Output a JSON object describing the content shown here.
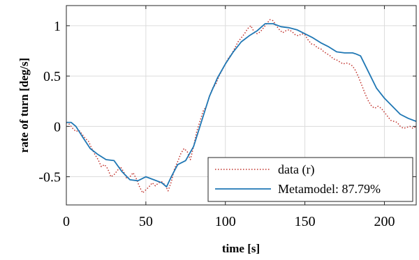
{
  "chart_data": {
    "type": "line",
    "xlabel": "time [s]",
    "ylabel": "rate of turn [deg/s]",
    "xlim": [
      0,
      220
    ],
    "ylim": [
      -0.78,
      1.2
    ],
    "xticks": [
      0,
      50,
      100,
      150,
      200
    ],
    "yticks": [
      -0.5,
      0,
      0.5,
      1
    ],
    "xtick_labels": [
      "0",
      "50",
      "100",
      "150",
      "200"
    ],
    "ytick_labels": [
      "-0.5",
      "0",
      "0.5",
      "1"
    ],
    "grid": true,
    "legend_position": "bottom-right",
    "series": [
      {
        "name": "data (r)",
        "color": "#c0302a",
        "style": "dotted",
        "x": [
          0,
          2,
          4,
          6,
          8,
          10,
          12,
          14,
          16,
          18,
          20,
          22,
          24,
          26,
          28,
          30,
          32,
          34,
          36,
          38,
          40,
          42,
          44,
          46,
          48,
          50,
          52,
          54,
          56,
          58,
          60,
          62,
          64,
          66,
          68,
          70,
          72,
          74,
          76,
          78,
          80,
          82,
          84,
          86,
          88,
          90,
          92,
          94,
          96,
          98,
          100,
          102,
          104,
          106,
          108,
          110,
          112,
          114,
          116,
          118,
          120,
          122,
          124,
          126,
          128,
          130,
          132,
          134,
          136,
          138,
          140,
          142,
          144,
          146,
          148,
          150,
          152,
          154,
          156,
          158,
          160,
          162,
          164,
          166,
          168,
          170,
          172,
          174,
          176,
          178,
          180,
          182,
          184,
          186,
          188,
          190,
          192,
          194,
          196,
          198,
          200,
          202,
          204,
          206,
          208,
          210,
          212,
          214,
          216,
          218,
          220
        ],
        "y": [
          0.04,
          0.02,
          -0.02,
          -0.05,
          -0.04,
          -0.08,
          -0.12,
          -0.15,
          -0.22,
          -0.28,
          -0.33,
          -0.4,
          -0.38,
          -0.42,
          -0.5,
          -0.48,
          -0.44,
          -0.4,
          -0.45,
          -0.52,
          -0.5,
          -0.46,
          -0.52,
          -0.6,
          -0.66,
          -0.63,
          -0.6,
          -0.56,
          -0.59,
          -0.56,
          -0.55,
          -0.58,
          -0.64,
          -0.55,
          -0.42,
          -0.35,
          -0.27,
          -0.22,
          -0.25,
          -0.33,
          -0.2,
          -0.05,
          0.05,
          0.15,
          0.2,
          0.3,
          0.38,
          0.42,
          0.5,
          0.56,
          0.62,
          0.68,
          0.72,
          0.78,
          0.84,
          0.88,
          0.92,
          0.97,
          1.0,
          0.94,
          0.92,
          0.94,
          0.98,
          1.02,
          1.06,
          1.05,
          1.0,
          0.96,
          0.93,
          0.95,
          0.96,
          0.94,
          0.91,
          0.9,
          0.92,
          0.91,
          0.86,
          0.82,
          0.81,
          0.78,
          0.77,
          0.74,
          0.72,
          0.7,
          0.67,
          0.66,
          0.64,
          0.62,
          0.63,
          0.62,
          0.6,
          0.55,
          0.48,
          0.4,
          0.32,
          0.25,
          0.2,
          0.18,
          0.2,
          0.18,
          0.14,
          0.1,
          0.06,
          0.05,
          0.04,
          0.0,
          -0.02,
          -0.01,
          0.0,
          -0.02,
          0.0
        ]
      },
      {
        "name": "Metamodel: 87.79%",
        "color": "#1f77b4",
        "style": "solid",
        "x": [
          0,
          3,
          6,
          10,
          15,
          20,
          25,
          30,
          35,
          40,
          45,
          50,
          55,
          60,
          63,
          66,
          70,
          75,
          80,
          85,
          90,
          95,
          100,
          105,
          110,
          115,
          120,
          125,
          130,
          135,
          140,
          145,
          150,
          155,
          160,
          165,
          170,
          175,
          180,
          182,
          185,
          190,
          195,
          200,
          205,
          210,
          215,
          220
        ],
        "y": [
          0.04,
          0.04,
          0.0,
          -0.1,
          -0.22,
          -0.28,
          -0.33,
          -0.34,
          -0.45,
          -0.53,
          -0.54,
          -0.5,
          -0.53,
          -0.56,
          -0.6,
          -0.5,
          -0.38,
          -0.34,
          -0.2,
          0.05,
          0.3,
          0.48,
          0.62,
          0.74,
          0.84,
          0.9,
          0.95,
          1.02,
          1.02,
          0.99,
          0.98,
          0.96,
          0.92,
          0.88,
          0.83,
          0.79,
          0.74,
          0.73,
          0.73,
          0.72,
          0.7,
          0.54,
          0.38,
          0.28,
          0.2,
          0.12,
          0.08,
          0.05
        ]
      }
    ]
  }
}
